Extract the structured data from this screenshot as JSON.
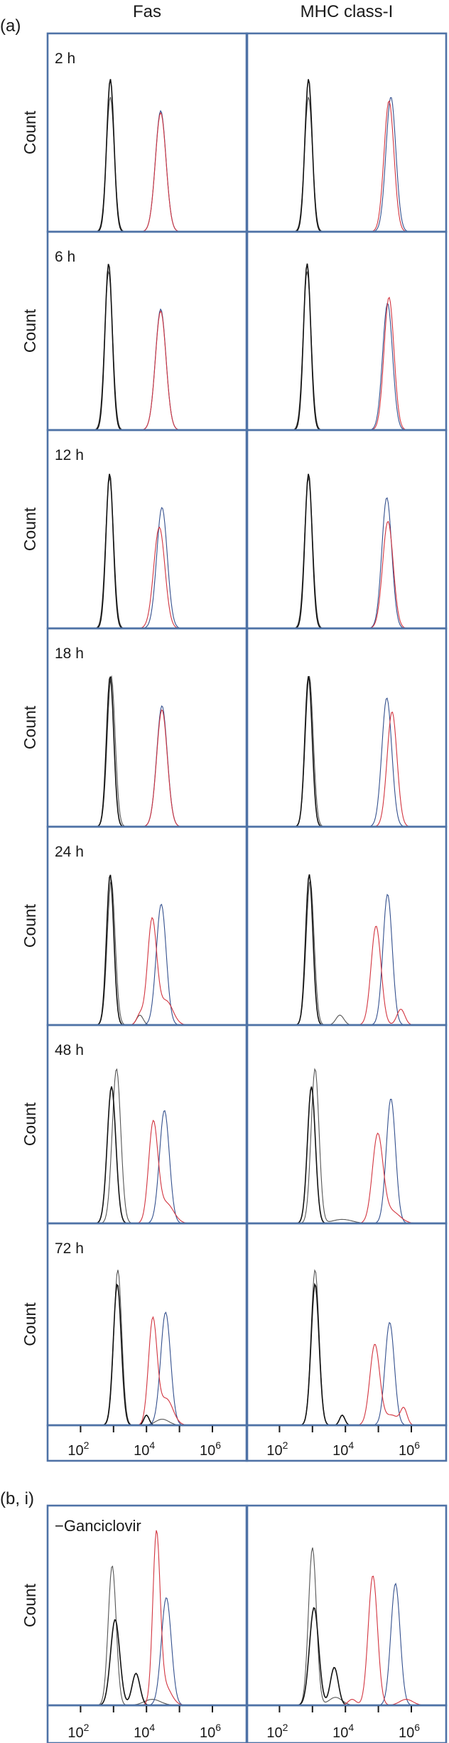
{
  "figure": {
    "panel_a_label": "(a)",
    "panel_b_label": "(b, i)",
    "columns": [
      "Fas",
      "MHC class-I"
    ],
    "y_axis_label": "Count",
    "x_ticks": [
      {
        "base": "10",
        "exp": "2"
      },
      {
        "base": "10",
        "exp": "4"
      },
      {
        "base": "10",
        "exp": "6"
      }
    ]
  },
  "colors": {
    "frame": "#4e72a6",
    "black": "#111111",
    "grey": "#555555",
    "red": "#d2343f",
    "blue": "#34508e"
  },
  "chart_data": [
    {
      "type": "line",
      "section": "a",
      "row_label": "2 h",
      "column": "Fas",
      "xscale": "log",
      "xlim": [
        10,
        10000000
      ],
      "ylabel": "Count",
      "series": [
        {
          "line": "grey",
          "peaks": [
            {
              "center": 800,
              "height": 0.68,
              "width": 0.12
            }
          ]
        },
        {
          "line": "black",
          "peaks": [
            {
              "center": 800,
              "height": 0.77,
              "width": 0.11
            }
          ]
        },
        {
          "line": "blue",
          "peaks": [
            {
              "center": 27000,
              "height": 0.61,
              "width": 0.16
            }
          ]
        },
        {
          "line": "red",
          "peaks": [
            {
              "center": 27000,
              "height": 0.6,
              "width": 0.16
            }
          ]
        }
      ]
    },
    {
      "type": "line",
      "section": "a",
      "row_label": "",
      "column": "MHC class-I",
      "xscale": "log",
      "xlim": [
        10,
        10000000
      ],
      "ylabel": "Count",
      "series": [
        {
          "line": "grey",
          "peaks": [
            {
              "center": 760,
              "height": 0.68,
              "width": 0.12
            }
          ]
        },
        {
          "line": "black",
          "peaks": [
            {
              "center": 760,
              "height": 0.77,
              "width": 0.11
            }
          ]
        },
        {
          "line": "blue",
          "peaks": [
            {
              "center": 240000,
              "height": 0.68,
              "width": 0.15
            }
          ]
        },
        {
          "line": "red",
          "peaks": [
            {
              "center": 210000,
              "height": 0.66,
              "width": 0.15
            }
          ]
        }
      ]
    },
    {
      "type": "line",
      "section": "a",
      "row_label": "6 h",
      "column": "Fas",
      "xscale": "log",
      "xlim": [
        10,
        10000000
      ],
      "ylabel": "Count",
      "series": [
        {
          "line": "grey",
          "peaks": [
            {
              "center": 710,
              "height": 0.8,
              "width": 0.12
            }
          ]
        },
        {
          "line": "black",
          "peaks": [
            {
              "center": 710,
              "height": 0.84,
              "width": 0.11
            }
          ]
        },
        {
          "line": "blue",
          "peaks": [
            {
              "center": 27000,
              "height": 0.61,
              "width": 0.16
            }
          ]
        },
        {
          "line": "red",
          "peaks": [
            {
              "center": 27000,
              "height": 0.6,
              "width": 0.16
            }
          ]
        }
      ]
    },
    {
      "type": "line",
      "section": "a",
      "row_label": "",
      "column": "MHC class-I",
      "xscale": "log",
      "xlim": [
        10,
        10000000
      ],
      "ylabel": "Count",
      "series": [
        {
          "line": "grey",
          "peaks": [
            {
              "center": 690,
              "height": 0.8,
              "width": 0.12
            }
          ]
        },
        {
          "line": "black",
          "peaks": [
            {
              "center": 690,
              "height": 0.84,
              "width": 0.11
            }
          ]
        },
        {
          "line": "blue",
          "peaks": [
            {
              "center": 190000,
              "height": 0.64,
              "width": 0.15
            }
          ]
        },
        {
          "line": "red",
          "peaks": [
            {
              "center": 210000,
              "height": 0.67,
              "width": 0.15
            }
          ]
        }
      ]
    },
    {
      "type": "line",
      "section": "a",
      "row_label": "12 h",
      "column": "Fas",
      "xscale": "log",
      "xlim": [
        10,
        10000000
      ],
      "ylabel": "Count",
      "series": [
        {
          "line": "grey",
          "peaks": [
            {
              "center": 760,
              "height": 0.76,
              "width": 0.12
            }
          ]
        },
        {
          "line": "black",
          "peaks": [
            {
              "center": 760,
              "height": 0.78,
              "width": 0.11
            }
          ]
        },
        {
          "line": "blue",
          "peaks": [
            {
              "center": 29500,
              "height": 0.61,
              "width": 0.16
            }
          ]
        },
        {
          "line": "red",
          "peaks": [
            {
              "center": 24500,
              "height": 0.51,
              "width": 0.17
            }
          ]
        }
      ]
    },
    {
      "type": "line",
      "section": "a",
      "row_label": "",
      "column": "MHC class-I",
      "xscale": "log",
      "xlim": [
        10,
        10000000
      ],
      "ylabel": "Count",
      "series": [
        {
          "line": "grey",
          "peaks": [
            {
              "center": 760,
              "height": 0.76,
              "width": 0.12
            }
          ]
        },
        {
          "line": "black",
          "peaks": [
            {
              "center": 760,
              "height": 0.78,
              "width": 0.11
            }
          ]
        },
        {
          "line": "blue",
          "peaks": [
            {
              "center": 180000,
              "height": 0.66,
              "width": 0.15
            }
          ]
        },
        {
          "line": "red",
          "peaks": [
            {
              "center": 195000,
              "height": 0.54,
              "width": 0.16
            }
          ]
        }
      ]
    },
    {
      "type": "line",
      "section": "a",
      "row_label": "18 h",
      "column": "Fas",
      "xscale": "log",
      "xlim": [
        10,
        10000000
      ],
      "ylabel": "Count",
      "series": [
        {
          "line": "grey",
          "peaks": [
            {
              "center": 850,
              "height": 0.76,
              "width": 0.12
            }
          ]
        },
        {
          "line": "black",
          "peaks": [
            {
              "center": 790,
              "height": 0.76,
              "width": 0.11
            }
          ]
        },
        {
          "line": "blue",
          "peaks": [
            {
              "center": 29500,
              "height": 0.61,
              "width": 0.16
            }
          ]
        },
        {
          "line": "red",
          "peaks": [
            {
              "center": 29500,
              "height": 0.59,
              "width": 0.16
            }
          ]
        }
      ]
    },
    {
      "type": "line",
      "section": "a",
      "row_label": "",
      "column": "MHC class-I",
      "xscale": "log",
      "xlim": [
        10,
        10000000
      ],
      "ylabel": "Count",
      "series": [
        {
          "line": "grey",
          "peaks": [
            {
              "center": 800,
              "height": 0.76,
              "width": 0.12
            }
          ]
        },
        {
          "line": "black",
          "peaks": [
            {
              "center": 760,
              "height": 0.76,
              "width": 0.11
            }
          ]
        },
        {
          "line": "blue",
          "peaks": [
            {
              "center": 180000,
              "height": 0.65,
              "width": 0.15
            }
          ]
        },
        {
          "line": "red",
          "peaks": [
            {
              "center": 260000,
              "height": 0.58,
              "width": 0.15
            }
          ]
        }
      ]
    },
    {
      "type": "line",
      "section": "a",
      "row_label": "24 h",
      "column": "Fas",
      "xscale": "log",
      "xlim": [
        10,
        10000000
      ],
      "ylabel": "Count",
      "series": [
        {
          "line": "grey",
          "peaks": [
            {
              "center": 850,
              "height": 0.73,
              "width": 0.12
            },
            {
              "center": 6300,
              "height": 0.05,
              "width": 0.1
            }
          ]
        },
        {
          "line": "black",
          "peaks": [
            {
              "center": 790,
              "height": 0.76,
              "width": 0.11
            }
          ]
        },
        {
          "line": "blue",
          "peaks": [
            {
              "center": 28000,
              "height": 0.61,
              "width": 0.15
            }
          ]
        },
        {
          "line": "red",
          "peaks": [
            {
              "center": 14800,
              "height": 0.53,
              "width": 0.14
            },
            {
              "center": 40000,
              "height": 0.12,
              "width": 0.2
            },
            {
              "center": 6300,
              "height": 0.05,
              "width": 0.1
            }
          ]
        }
      ]
    },
    {
      "type": "line",
      "section": "a",
      "row_label": "",
      "column": "MHC class-I",
      "xscale": "log",
      "xlim": [
        10,
        10000000
      ],
      "ylabel": "Count",
      "series": [
        {
          "line": "grey",
          "peaks": [
            {
              "center": 850,
              "height": 0.73,
              "width": 0.12
            },
            {
              "center": 6800,
              "height": 0.05,
              "width": 0.12
            }
          ]
        },
        {
          "line": "black",
          "peaks": [
            {
              "center": 800,
              "height": 0.76,
              "width": 0.11
            }
          ]
        },
        {
          "line": "blue",
          "peaks": [
            {
              "center": 190000,
              "height": 0.66,
              "width": 0.14
            }
          ]
        },
        {
          "line": "red",
          "peaks": [
            {
              "center": 85000,
              "height": 0.5,
              "width": 0.15
            },
            {
              "center": 480000,
              "height": 0.08,
              "width": 0.12
            }
          ]
        }
      ]
    },
    {
      "type": "line",
      "section": "a",
      "row_label": "48 h",
      "column": "Fas",
      "xscale": "log",
      "xlim": [
        10,
        10000000
      ],
      "ylabel": "Count",
      "series": [
        {
          "line": "grey",
          "peaks": [
            {
              "center": 1230,
              "height": 0.78,
              "width": 0.13
            }
          ]
        },
        {
          "line": "black",
          "peaks": [
            {
              "center": 870,
              "height": 0.69,
              "width": 0.13
            }
          ]
        },
        {
          "line": "blue",
          "peaks": [
            {
              "center": 35000,
              "height": 0.57,
              "width": 0.15
            }
          ]
        },
        {
          "line": "red",
          "peaks": [
            {
              "center": 16000,
              "height": 0.5,
              "width": 0.14
            },
            {
              "center": 40000,
              "height": 0.1,
              "width": 0.22
            }
          ]
        }
      ]
    },
    {
      "type": "line",
      "section": "a",
      "row_label": "",
      "column": "MHC class-I",
      "xscale": "log",
      "xlim": [
        10,
        10000000
      ],
      "ylabel": "Count",
      "series": [
        {
          "line": "grey",
          "peaks": [
            {
              "center": 1200,
              "height": 0.78,
              "width": 0.12
            },
            {
              "center": 8000,
              "height": 0.02,
              "width": 0.3
            }
          ]
        },
        {
          "line": "black",
          "peaks": [
            {
              "center": 930,
              "height": 0.69,
              "width": 0.12
            }
          ]
        },
        {
          "line": "blue",
          "peaks": [
            {
              "center": 240000,
              "height": 0.63,
              "width": 0.14
            }
          ]
        },
        {
          "line": "red",
          "peaks": [
            {
              "center": 95000,
              "height": 0.44,
              "width": 0.16
            },
            {
              "center": 250000,
              "height": 0.06,
              "width": 0.25
            }
          ]
        }
      ]
    },
    {
      "type": "line",
      "section": "a",
      "row_label": "72 h",
      "column": "Fas",
      "xscale": "log",
      "xlim": [
        10,
        10000000
      ],
      "ylabel": "Count",
      "series": [
        {
          "line": "grey",
          "peaks": [
            {
              "center": 1350,
              "height": 0.77,
              "width": 0.12
            },
            {
              "center": 30000,
              "height": 0.03,
              "width": 0.2
            }
          ]
        },
        {
          "line": "black",
          "peaks": [
            {
              "center": 1300,
              "height": 0.7,
              "width": 0.12
            },
            {
              "center": 10000,
              "height": 0.05,
              "width": 0.08
            }
          ]
        },
        {
          "line": "blue",
          "peaks": [
            {
              "center": 38000,
              "height": 0.56,
              "width": 0.15
            }
          ]
        },
        {
          "line": "red",
          "peaks": [
            {
              "center": 15500,
              "height": 0.52,
              "width": 0.13
            },
            {
              "center": 40000,
              "height": 0.13,
              "width": 0.2
            }
          ]
        }
      ]
    },
    {
      "type": "line",
      "section": "a",
      "row_label": "",
      "column": "MHC class-I",
      "xscale": "log",
      "xlim": [
        10,
        10000000
      ],
      "ylabel": "Count",
      "series": [
        {
          "line": "grey",
          "peaks": [
            {
              "center": 1200,
              "height": 0.77,
              "width": 0.12
            }
          ]
        },
        {
          "line": "black",
          "peaks": [
            {
              "center": 1200,
              "height": 0.7,
              "width": 0.12
            },
            {
              "center": 8000,
              "height": 0.05,
              "width": 0.08
            }
          ]
        },
        {
          "line": "blue",
          "peaks": [
            {
              "center": 220000,
              "height": 0.51,
              "width": 0.14
            }
          ]
        },
        {
          "line": "red",
          "peaks": [
            {
              "center": 78000,
              "height": 0.4,
              "width": 0.15
            },
            {
              "center": 590000,
              "height": 0.08,
              "width": 0.1
            },
            {
              "center": 250000,
              "height": 0.05,
              "width": 0.2
            }
          ]
        }
      ]
    },
    {
      "type": "line",
      "section": "b",
      "row_label": "−Ganciclovir",
      "column": "Fas",
      "xscale": "log",
      "xlim": [
        10,
        10000000
      ],
      "ylabel": "Count",
      "series": [
        {
          "line": "grey",
          "peaks": [
            {
              "center": 910,
              "height": 0.7,
              "width": 0.12
            },
            {
              "center": 15000,
              "height": 0.03,
              "width": 0.25
            }
          ]
        },
        {
          "line": "black",
          "peaks": [
            {
              "center": 1120,
              "height": 0.43,
              "width": 0.14
            },
            {
              "center": 4800,
              "height": 0.16,
              "width": 0.12
            }
          ]
        },
        {
          "line": "blue",
          "peaks": [
            {
              "center": 40000,
              "height": 0.54,
              "width": 0.15
            }
          ]
        },
        {
          "line": "red",
          "peaks": [
            {
              "center": 20000,
              "height": 0.83,
              "width": 0.11
            },
            {
              "center": 35000,
              "height": 0.1,
              "width": 0.2
            }
          ]
        }
      ]
    },
    {
      "type": "line",
      "section": "b",
      "row_label": "",
      "column": "MHC class-I",
      "xscale": "log",
      "xlim": [
        10,
        10000000
      ],
      "ylabel": "Count",
      "series": [
        {
          "line": "grey",
          "peaks": [
            {
              "center": 1000,
              "height": 0.79,
              "width": 0.12
            },
            {
              "center": 5000,
              "height": 0.04,
              "width": 0.2
            }
          ]
        },
        {
          "line": "black",
          "peaks": [
            {
              "center": 1120,
              "height": 0.49,
              "width": 0.14
            },
            {
              "center": 4600,
              "height": 0.19,
              "width": 0.12
            }
          ]
        },
        {
          "line": "blue",
          "peaks": [
            {
              "center": 330000,
              "height": 0.61,
              "width": 0.14
            }
          ]
        },
        {
          "line": "red",
          "peaks": [
            {
              "center": 68000,
              "height": 0.65,
              "width": 0.14
            },
            {
              "center": 700000,
              "height": 0.03,
              "width": 0.2
            },
            {
              "center": 16000,
              "height": 0.03,
              "width": 0.12
            }
          ]
        }
      ]
    }
  ]
}
